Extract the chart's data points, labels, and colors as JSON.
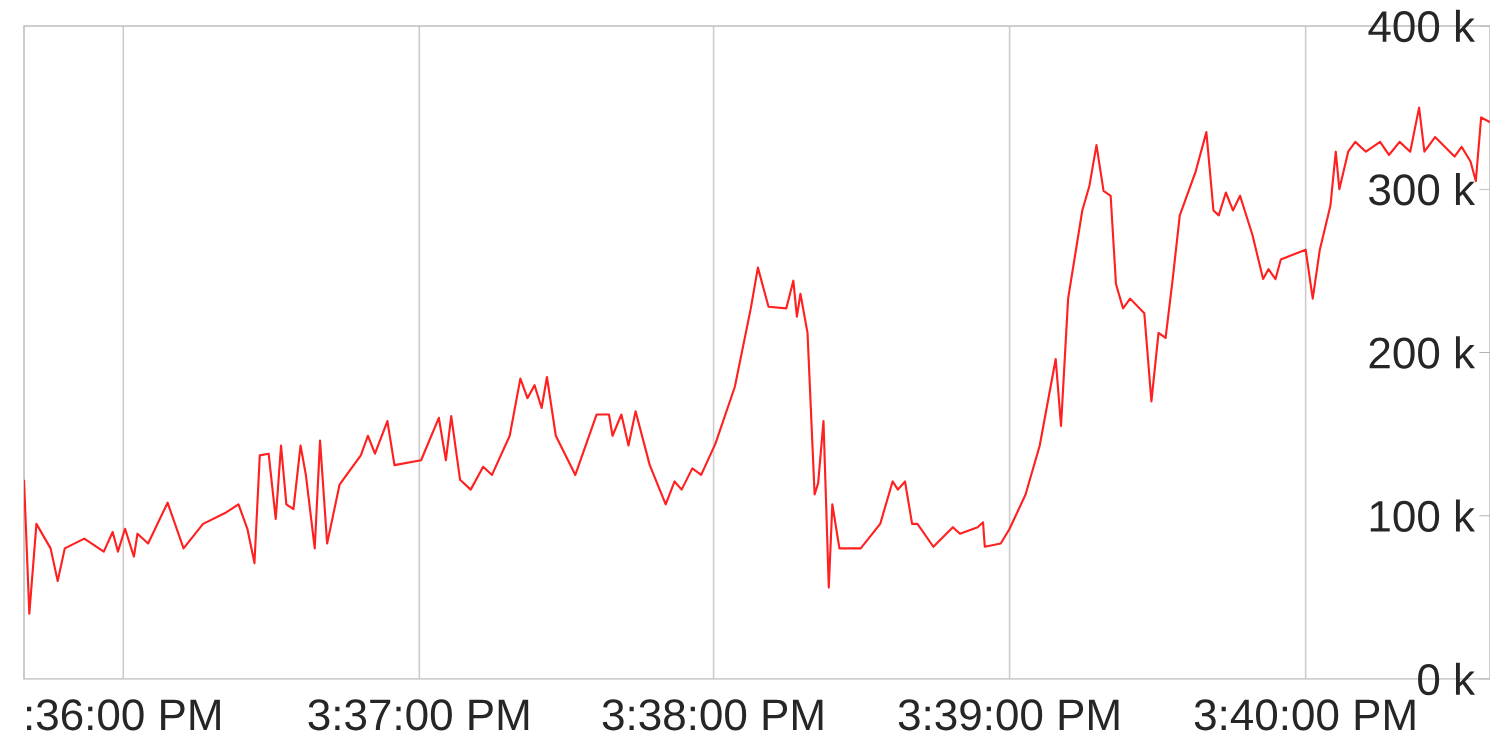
{
  "chart_data": {
    "type": "line",
    "color": "#ff2020",
    "grid": "x",
    "xlim": [
      15.5944,
      15.6771
    ],
    "xticks": [
      {
        "value": 15.6,
        "label": ":36:00 PM"
      },
      {
        "value": 15.6167,
        "label": "3:37:00 PM"
      },
      {
        "value": 15.6333,
        "label": "3:38:00 PM"
      },
      {
        "value": 15.65,
        "label": "3:39:00 PM"
      },
      {
        "value": 15.6667,
        "label": "3:40:00 PM"
      }
    ],
    "ylim": [
      0,
      400000
    ],
    "yticks": [
      {
        "value": 0,
        "label": "0 k"
      },
      {
        "value": 100000,
        "label": "100 k"
      },
      {
        "value": 200000,
        "label": "200 k"
      },
      {
        "value": 300000,
        "label": "300 k"
      },
      {
        "value": 400000,
        "label": "400 k"
      }
    ],
    "x": [
      15.5944,
      15.5947,
      15.5951,
      15.5959,
      15.5963,
      15.5967,
      15.5978,
      15.5989,
      15.5994,
      15.5997,
      15.6001,
      15.6006,
      15.6008,
      15.6014,
      15.6025,
      15.6034,
      15.6045,
      15.6058,
      15.6065,
      15.607,
      15.6074,
      15.6077,
      15.6082,
      15.6086,
      15.6089,
      15.6092,
      15.6096,
      15.61,
      15.6103,
      15.6108,
      15.6111,
      15.6115,
      15.6122,
      15.6134,
      15.6138,
      15.6142,
      15.6149,
      15.6153,
      15.6168,
      15.6178,
      15.6182,
      15.6185,
      15.619,
      15.6196,
      15.6203,
      15.6208,
      15.6218,
      15.6224,
      15.6228,
      15.6232,
      15.6236,
      15.6239,
      15.6244,
      15.6255,
      15.6267,
      15.6274,
      15.6276,
      15.6281,
      15.6285,
      15.6289,
      15.6297,
      15.6306,
      15.6311,
      15.6315,
      15.6321,
      15.6326,
      15.6334,
      15.6345,
      15.6354,
      15.6358,
      15.6364,
      15.6374,
      15.6378,
      15.638,
      15.6382,
      15.6386,
      15.639,
      15.6392,
      15.6395,
      15.6398,
      15.64,
      15.6404,
      15.6416,
      15.6427,
      15.6434,
      15.6437,
      15.6441,
      15.6445,
      15.6448,
      15.6457,
      15.6468,
      15.6472,
      15.6482,
      15.6485,
      15.6486,
      15.6495,
      15.65,
      15.6509,
      15.6517,
      15.6526,
      15.6529,
      15.6533,
      15.6537,
      15.6541,
      15.6545,
      15.6549,
      15.6553,
      15.6557,
      15.656,
      15.6564,
      15.6568,
      15.6576,
      15.658,
      15.6584,
      15.6588,
      15.6592,
      15.6596,
      15.6605,
      15.6611,
      15.6615,
      15.6618,
      15.6622,
      15.6626,
      15.663,
      15.6637,
      15.6643,
      15.6646,
      15.665,
      15.6653,
      15.6667,
      15.6671,
      15.6675,
      15.6681,
      15.6684,
      15.6686,
      15.6691,
      15.6695,
      15.6701,
      15.6709,
      15.6714,
      15.672,
      15.6726,
      15.6731,
      15.6734,
      15.674,
      15.6751,
      15.6755,
      15.676,
      15.6763,
      15.6766,
      15.6771
    ],
    "values": [
      122000,
      40000,
      95000,
      80000,
      60000,
      80000,
      86000,
      78000,
      90000,
      78000,
      92000,
      75000,
      89000,
      83000,
      108000,
      80000,
      95000,
      102000,
      107000,
      92000,
      71000,
      137000,
      138000,
      98000,
      143000,
      107000,
      104000,
      143000,
      125000,
      80000,
      146000,
      83000,
      119000,
      137000,
      149000,
      138000,
      158000,
      131000,
      134000,
      160000,
      134000,
      161000,
      122000,
      116000,
      130000,
      125000,
      149000,
      184000,
      172000,
      180000,
      166000,
      185000,
      149000,
      125000,
      162000,
      162000,
      149000,
      162000,
      143000,
      164000,
      131000,
      107000,
      121000,
      116000,
      129000,
      125000,
      144000,
      179000,
      227000,
      252000,
      228000,
      227000,
      244000,
      222000,
      236000,
      212000,
      113000,
      120000,
      158000,
      56000,
      107000,
      80000,
      80000,
      95000,
      121000,
      116000,
      121000,
      95000,
      95000,
      81000,
      93000,
      89000,
      93000,
      96000,
      81000,
      83000,
      92000,
      113000,
      143000,
      196000,
      155000,
      233000,
      260000,
      287000,
      302000,
      327000,
      299000,
      296000,
      242000,
      227000,
      233000,
      224000,
      170000,
      212000,
      209000,
      245000,
      284000,
      311000,
      335000,
      287000,
      284000,
      298000,
      287000,
      296000,
      272000,
      245000,
      251000,
      245000,
      257000,
      263000,
      233000,
      263000,
      290000,
      323000,
      300000,
      323000,
      329000,
      323000,
      329000,
      321000,
      329000,
      323000,
      350000,
      323000,
      332000,
      320000,
      326000,
      317000,
      305000,
      344000,
      341000
    ]
  }
}
